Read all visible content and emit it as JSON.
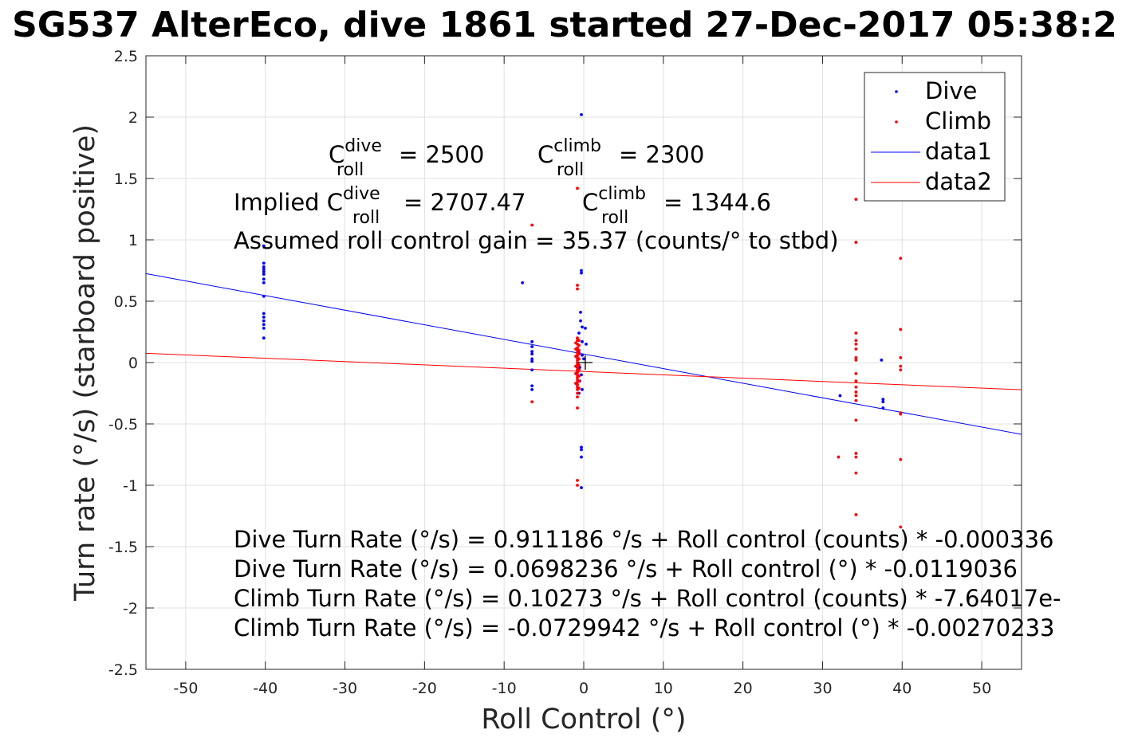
{
  "chart_data": {
    "type": "scatter",
    "title": "SG537 AlterEco, dive 1861 started 27-Dec-2017 05:38:2",
    "xlabel": "Roll Control (°)",
    "ylabel": "Turn rate (°/s) (starboard positive)",
    "xlim": [
      -55,
      55
    ],
    "ylim": [
      -2.5,
      2.5
    ],
    "xticks": [
      -50,
      -40,
      -30,
      -20,
      -10,
      0,
      10,
      20,
      30,
      40,
      50
    ],
    "yticks": [
      -2.5,
      -2,
      -1.5,
      -1,
      -0.5,
      0,
      0.5,
      1,
      1.5,
      2,
      2.5
    ],
    "grid": true,
    "legend_position": "top-right",
    "colors": {
      "dive": "#0000ff",
      "climb": "#ff0000",
      "axis": "#262626",
      "grid": "#e0e0e0"
    },
    "series": [
      {
        "name": "Dive",
        "kind": "points",
        "color": "#0000ff",
        "points": [
          [
            -40.2,
            0.95
          ],
          [
            -40.2,
            0.81
          ],
          [
            -40.2,
            0.78
          ],
          [
            -40.2,
            0.76
          ],
          [
            -40.2,
            0.74
          ],
          [
            -40.2,
            0.72
          ],
          [
            -40.2,
            0.68
          ],
          [
            -40.2,
            0.65
          ],
          [
            -40.2,
            0.54
          ],
          [
            -40.2,
            0.4
          ],
          [
            -40.2,
            0.37
          ],
          [
            -40.2,
            0.34
          ],
          [
            -40.2,
            0.31
          ],
          [
            -40.2,
            0.28
          ],
          [
            -40.2,
            0.2
          ],
          [
            -7.7,
            0.65
          ],
          [
            -6.5,
            0.17
          ],
          [
            -6.5,
            0.13
          ],
          [
            -6.5,
            0.09
          ],
          [
            -6.5,
            0.07
          ],
          [
            -6.5,
            0.03
          ],
          [
            -6.5,
            0.01
          ],
          [
            -6.5,
            -0.06
          ],
          [
            -6.5,
            -0.19
          ],
          [
            -6.5,
            -0.22
          ],
          [
            -0.3,
            2.02
          ],
          [
            -0.3,
            0.75
          ],
          [
            -0.3,
            0.73
          ],
          [
            -0.4,
            0.41
          ],
          [
            -0.4,
            0.34
          ],
          [
            -0.2,
            0.29
          ],
          [
            0.2,
            0.28
          ],
          [
            -0.6,
            0.24
          ],
          [
            -0.2,
            0.17
          ],
          [
            0.3,
            0.15
          ],
          [
            -0.6,
            0.08
          ],
          [
            -0.2,
            0.06
          ],
          [
            0.0,
            0.03
          ],
          [
            -0.5,
            -0.04
          ],
          [
            -0.3,
            -0.1
          ],
          [
            -0.5,
            -0.15
          ],
          [
            -0.2,
            -0.22
          ],
          [
            -0.6,
            -0.25
          ],
          [
            -0.3,
            -0.69
          ],
          [
            -0.3,
            -0.71
          ],
          [
            -0.3,
            -0.77
          ],
          [
            -0.3,
            -1.02
          ],
          [
            32.2,
            -0.27
          ],
          [
            37.4,
            0.02
          ],
          [
            37.6,
            -0.3
          ],
          [
            37.6,
            -0.32
          ],
          [
            37.6,
            -0.37
          ]
        ]
      },
      {
        "name": "Climb",
        "kind": "points",
        "color": "#ff0000",
        "points": [
          [
            -6.5,
            1.12
          ],
          [
            -6.5,
            -0.32
          ],
          [
            -0.8,
            1.42
          ],
          [
            -0.8,
            0.63
          ],
          [
            -0.8,
            0.6
          ],
          [
            -0.8,
            0.2
          ],
          [
            -0.8,
            0.18
          ],
          [
            -0.8,
            0.15
          ],
          [
            -0.8,
            0.12
          ],
          [
            -0.8,
            0.1
          ],
          [
            -0.8,
            0.08
          ],
          [
            -0.8,
            0.06
          ],
          [
            -0.8,
            0.04
          ],
          [
            -0.8,
            0.02
          ],
          [
            -0.8,
            0.0
          ],
          [
            -0.8,
            -0.02
          ],
          [
            -0.8,
            -0.04
          ],
          [
            -0.8,
            -0.06
          ],
          [
            -0.8,
            -0.08
          ],
          [
            -0.8,
            -0.1
          ],
          [
            -0.8,
            -0.12
          ],
          [
            -0.8,
            -0.14
          ],
          [
            -0.8,
            -0.16
          ],
          [
            -0.8,
            -0.18
          ],
          [
            -0.8,
            -0.2
          ],
          [
            -0.8,
            -0.22
          ],
          [
            -0.8,
            -0.25
          ],
          [
            -0.8,
            -0.28
          ],
          [
            -0.8,
            -0.37
          ],
          [
            -0.6,
            0.18
          ],
          [
            -0.6,
            0.14
          ],
          [
            -0.6,
            0.1
          ],
          [
            -0.6,
            0.07
          ],
          [
            -0.6,
            0.03
          ],
          [
            -0.6,
            -0.02
          ],
          [
            -0.6,
            -0.06
          ],
          [
            -0.6,
            -0.11
          ],
          [
            -0.6,
            -0.15
          ],
          [
            -0.6,
            -0.21
          ],
          [
            -1.0,
            0.16
          ],
          [
            -1.0,
            0.11
          ],
          [
            -1.0,
            0.05
          ],
          [
            -1.0,
            -0.03
          ],
          [
            -1.0,
            -0.09
          ],
          [
            -1.0,
            -0.17
          ],
          [
            -0.8,
            -0.96
          ],
          [
            -0.8,
            -1.0
          ],
          [
            32.0,
            -0.77
          ],
          [
            34.2,
            1.33
          ],
          [
            34.2,
            0.98
          ],
          [
            34.2,
            0.24
          ],
          [
            34.2,
            0.18
          ],
          [
            34.2,
            0.15
          ],
          [
            34.2,
            0.11
          ],
          [
            34.2,
            0.04
          ],
          [
            34.2,
            0.02
          ],
          [
            34.2,
            -0.09
          ],
          [
            34.2,
            -0.15
          ],
          [
            34.2,
            -0.2
          ],
          [
            34.2,
            -0.24
          ],
          [
            34.2,
            -0.27
          ],
          [
            34.2,
            -0.31
          ],
          [
            34.2,
            -0.47
          ],
          [
            34.2,
            -0.74
          ],
          [
            34.2,
            -0.77
          ],
          [
            34.2,
            -0.9
          ],
          [
            34.2,
            -1.24
          ],
          [
            39.8,
            0.85
          ],
          [
            39.8,
            0.27
          ],
          [
            39.8,
            0.04
          ],
          [
            39.8,
            -0.03
          ],
          [
            39.8,
            -0.06
          ],
          [
            39.8,
            -0.41
          ],
          [
            39.8,
            -0.42
          ],
          [
            39.8,
            -0.79
          ],
          [
            39.8,
            -1.34
          ]
        ]
      },
      {
        "name": "data1",
        "kind": "line",
        "color": "#0000ff",
        "points": [
          [
            -55,
            0.7245
          ],
          [
            55,
            -0.5851
          ]
        ]
      },
      {
        "name": "data2",
        "kind": "line",
        "color": "#ff0000",
        "points": [
          [
            -55,
            0.0756
          ],
          [
            55,
            -0.2216
          ]
        ]
      }
    ],
    "annotations": {
      "c_roll_dive": {
        "prefix": "C",
        "sup": "dive",
        "sub": "roll",
        "value": "= 2500"
      },
      "c_roll_climb": {
        "prefix": "C",
        "sup": "climb",
        "sub": "roll",
        "value": "= 2300"
      },
      "implied_dive": {
        "prefix": "Implied C",
        "sup": "dive",
        "sub": "roll",
        "value": "= 2707.47"
      },
      "implied_climb": {
        "prefix": "C",
        "sup": "climb",
        "sub": "roll",
        "value": "= 1344.6"
      },
      "gain": "Assumed roll control gain = 35.37 (counts/° to stbd)",
      "fit_lines": [
        "Dive Turn Rate (°/s) = 0.911186 °/s + Roll control (counts) * -0.000336",
        "Dive Turn Rate (°/s) = 0.0698236 °/s + Roll control (°) * -0.0119036",
        "Climb Turn Rate (°/s) = 0.10273 °/s + Roll control (counts) * -7.64017e-",
        "Climb Turn Rate (°/s) = -0.0729942 °/s + Roll control (°) * -0.00270233"
      ]
    },
    "marker": {
      "x": 0.2,
      "y": 0.0,
      "symbol": "+"
    }
  }
}
